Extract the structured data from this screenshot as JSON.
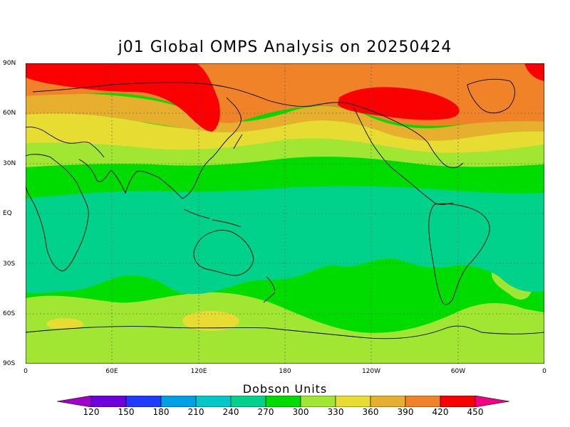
{
  "title": "j01 Global OMPS Analysis on 20250424",
  "map": {
    "lat_ticks": [
      "90N",
      "60N",
      "30N",
      "EQ",
      "30S",
      "60S",
      "90S"
    ],
    "lon_ticks": [
      "0",
      "60E",
      "120E",
      "180",
      "120W",
      "60W",
      "0"
    ],
    "field": "Total column ozone",
    "projection": "cylindrical equidistant",
    "grid": "dotted"
  },
  "colorbar": {
    "title": "Dobson Units",
    "labels": [
      "120",
      "150",
      "180",
      "210",
      "240",
      "270",
      "300",
      "330",
      "360",
      "390",
      "420",
      "450"
    ],
    "colors": [
      "#a000c8",
      "#6e00dc",
      "#1e3cff",
      "#00a0e6",
      "#00c8c8",
      "#00d28c",
      "#00dc00",
      "#a0e632",
      "#e6dc32",
      "#e6af2d",
      "#f08228",
      "#fa0000",
      "#f00082"
    ]
  },
  "chart_data": {
    "type": "heatmap",
    "title": "j01 Global OMPS Analysis on 20250424",
    "xlabel": "",
    "ylabel": "",
    "colorbar_label": "Dobson Units",
    "xlim": [
      0,
      360
    ],
    "ylim": [
      -90,
      90
    ],
    "bands": [
      {
        "name": "300-330",
        "lat_range": [
          -90,
          -62
        ]
      },
      {
        "name": "270-300",
        "lat_range": [
          -62,
          -40
        ]
      },
      {
        "name": "240-270",
        "lat_range": [
          -40,
          16
        ]
      },
      {
        "name": "270-300",
        "lat_range": [
          16,
          28
        ]
      },
      {
        "name": "300-330",
        "lat_range": [
          28,
          38
        ]
      },
      {
        "name": "330-360",
        "lat_range": [
          38,
          52
        ]
      },
      {
        "name": "360-390",
        "lat_range": [
          52,
          62
        ]
      },
      {
        "name": "390-420",
        "lat_range": [
          62,
          78
        ]
      },
      {
        "name": ">420",
        "lat_range": [
          78,
          90
        ]
      }
    ],
    "maxima": [
      {
        "range": ">420",
        "lat": 72,
        "lon": 80
      },
      {
        "range": ">420",
        "lat": 66,
        "lon": 260
      },
      {
        "range": "330-360",
        "lat": -67,
        "lon": 115
      },
      {
        "range": "330-360",
        "lat": -64,
        "lon": 20
      }
    ]
  }
}
